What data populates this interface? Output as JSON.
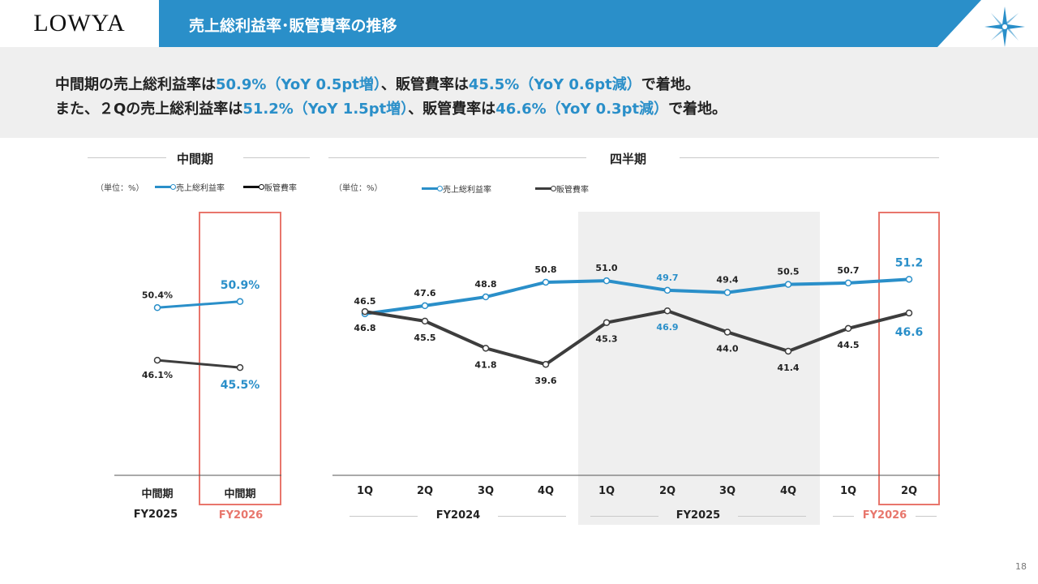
{
  "brand": {
    "logo_text": "LOWYA"
  },
  "header": {
    "title": "売上総利益率･販管費率の推移"
  },
  "summary": {
    "line1": [
      {
        "text": "中間期の売上総利益率は",
        "hl": false
      },
      {
        "text": "50.9%（YoY 0.5pt増）",
        "hl": true
      },
      {
        "text": "、販管費率は",
        "hl": false
      },
      {
        "text": "45.5%（YoY 0.6pt減）",
        "hl": true
      },
      {
        "text": "で着地。",
        "hl": false
      }
    ],
    "line2": [
      {
        "text": "また、２Qの売上総利益率は",
        "hl": false
      },
      {
        "text": "51.2%（YoY 1.5pt増）",
        "hl": true
      },
      {
        "text": "、販管費率は",
        "hl": false
      },
      {
        "text": "46.6%（YoY 0.3pt減）",
        "hl": true
      },
      {
        "text": "で着地。",
        "hl": false
      }
    ]
  },
  "colors": {
    "band": "#2a8fc9",
    "gross": "#2a8fc9",
    "sga": "#3d3d3d",
    "highlight": "#e8766c"
  },
  "legend": {
    "unit": "（単位：%）",
    "gross_label": "売上総利益率",
    "sga_label": "販管費率"
  },
  "page_number": "18",
  "chart_data": [
    {
      "type": "line",
      "title": "中間期",
      "unit": "（単位：%）",
      "categories": [
        "中間期",
        "中間期"
      ],
      "fiscal_years": [
        "FY2025",
        "FY2026"
      ],
      "highlight_index": 1,
      "series": [
        {
          "name": "売上総利益率",
          "values": [
            50.4,
            50.9
          ],
          "labels": [
            "50.4%",
            "50.9%"
          ],
          "label_pos": [
            "above",
            "above"
          ]
        },
        {
          "name": "販管費率",
          "values": [
            46.1,
            45.5
          ],
          "labels": [
            "46.1%",
            "45.5%"
          ],
          "label_pos": [
            "below",
            "below"
          ]
        }
      ]
    },
    {
      "type": "line",
      "title": "四半期",
      "unit": "（単位：%）",
      "categories": [
        "1Q",
        "2Q",
        "3Q",
        "4Q",
        "1Q",
        "2Q",
        "3Q",
        "4Q",
        "1Q",
        "2Q"
      ],
      "fiscal_years": [
        "FY2024",
        "FY2025",
        "FY2026"
      ],
      "shaded_group": "FY2025",
      "highlight_index": 9,
      "series": [
        {
          "name": "売上総利益率",
          "values": [
            46.5,
            47.6,
            48.8,
            50.8,
            51.0,
            49.7,
            49.4,
            50.5,
            50.7,
            51.2
          ],
          "label_pos": [
            "above",
            "above",
            "above",
            "above",
            "above",
            "above",
            "above",
            "above",
            "above",
            "above"
          ]
        },
        {
          "name": "販管費率",
          "values": [
            46.8,
            45.5,
            41.8,
            39.6,
            45.3,
            46.9,
            44.0,
            41.4,
            44.5,
            46.6
          ],
          "label_pos": [
            "below",
            "below",
            "below",
            "below",
            "below",
            "below",
            "below",
            "below",
            "below",
            "below"
          ]
        }
      ],
      "blue_labels": {
        "gross": [
          5,
          9
        ],
        "sga": [
          5,
          9
        ]
      }
    }
  ]
}
